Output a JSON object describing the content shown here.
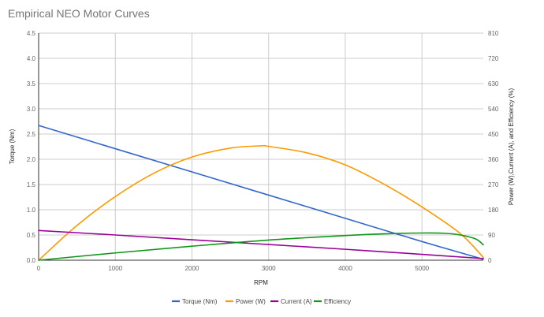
{
  "chart_data": {
    "type": "line",
    "title": "Empirical NEO Motor Curves",
    "xlabel": "RPM",
    "ylabel_left": "Torque (Nm)",
    "ylabel_right": "Power (W),Current (A), and Efficiency (%)",
    "xlim": [
      0,
      5800
    ],
    "ylim_left": [
      0,
      4.5
    ],
    "ylim_right": [
      0,
      810
    ],
    "x_ticks": [
      "0",
      "1000",
      "2000",
      "3000",
      "4000",
      "5000"
    ],
    "y_left_ticks": [
      "0.0",
      "0.5",
      "1.0",
      "1.5",
      "2.0",
      "2.5",
      "3.0",
      "3.5",
      "4.0",
      "4.5"
    ],
    "y_right_ticks": [
      "0",
      "90",
      "180",
      "270",
      "360",
      "450",
      "540",
      "630",
      "720",
      "810"
    ],
    "grid": true,
    "legend_position": "bottom",
    "series": [
      {
        "name": "Torque (Nm)",
        "axis": "left",
        "color": "#3366cc",
        "x": [
          0,
          1000,
          2000,
          3000,
          4000,
          5000,
          5800
        ],
        "values": [
          2.67,
          2.21,
          1.75,
          1.29,
          0.83,
          0.37,
          0.02
        ]
      },
      {
        "name": "Power (W)",
        "axis": "right",
        "color": "#ff9900",
        "x": [
          0,
          500,
          1000,
          1500,
          2000,
          2500,
          2900,
          3000,
          3500,
          4000,
          4500,
          5000,
          5500,
          5800
        ],
        "values": [
          0,
          124,
          227,
          310,
          368,
          400,
          408,
          406,
          383,
          340,
          272,
          190,
          95,
          10
        ]
      },
      {
        "name": "Current (A)",
        "axis": "right",
        "color": "#990099",
        "x": [
          0,
          1000,
          2000,
          3000,
          4000,
          5000,
          5800
        ],
        "values": [
          106,
          90,
          73,
          56,
          39,
          21,
          6
        ]
      },
      {
        "name": "Efficiency",
        "axis": "right",
        "color": "#109618",
        "x": [
          0,
          1000,
          2000,
          3000,
          4000,
          4500,
          5000,
          5300,
          5500,
          5700,
          5800
        ],
        "values": [
          0,
          26,
          50,
          72,
          88,
          94,
          97,
          96,
          90,
          76,
          55
        ]
      }
    ]
  }
}
